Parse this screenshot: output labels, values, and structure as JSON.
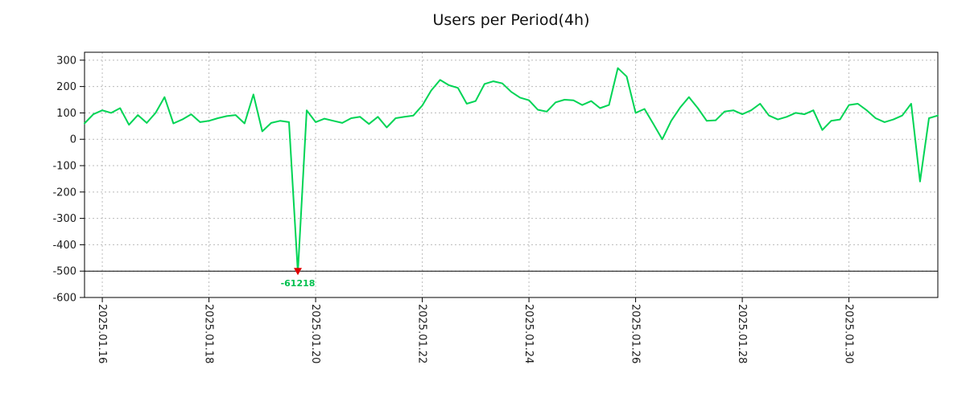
{
  "chart_data": {
    "type": "line",
    "title": "Users per Period(4h)",
    "period": "4h",
    "grid": true,
    "legend": false,
    "ylim": [
      -600,
      330
    ],
    "y_ticks": [
      300,
      200,
      100,
      0,
      -100,
      -200,
      -300,
      -400,
      -500,
      -600
    ],
    "x_tick_labels": [
      "2025.01.16",
      "2025.01.18",
      "2025.01.20",
      "2025.01.22",
      "2025.01.24",
      "2025.01.26",
      "2025.01.28",
      "2025.01.30"
    ],
    "x_tick_indices": [
      2,
      14,
      26,
      38,
      50,
      62,
      74,
      86
    ],
    "values": [
      60,
      95,
      110,
      100,
      118,
      55,
      92,
      62,
      100,
      160,
      60,
      75,
      95,
      65,
      70,
      80,
      88,
      92,
      60,
      170,
      30,
      62,
      70,
      65,
      -61218,
      110,
      65,
      78,
      70,
      62,
      80,
      85,
      58,
      85,
      45,
      80,
      85,
      90,
      128,
      185,
      225,
      205,
      195,
      135,
      145,
      210,
      220,
      212,
      180,
      158,
      148,
      112,
      105,
      140,
      150,
      148,
      130,
      145,
      118,
      130,
      270,
      238,
      100,
      115,
      58,
      0,
      70,
      120,
      160,
      118,
      70,
      72,
      105,
      110,
      95,
      110,
      135,
      90,
      75,
      85,
      100,
      95,
      110,
      35,
      70,
      75,
      130,
      135,
      110,
      80,
      65,
      75,
      90,
      135,
      -160,
      80,
      90
    ],
    "min_annotation": {
      "index": 24,
      "value": -61218,
      "label": "-61218",
      "ref_line": -500,
      "display_clip": -505
    },
    "colors": {
      "line": "#00d455",
      "marker": "#e00000",
      "grid": "#bbbbbb",
      "axis": "#000000",
      "text": "#1a1a1a",
      "annotation": "#00c04e"
    }
  }
}
